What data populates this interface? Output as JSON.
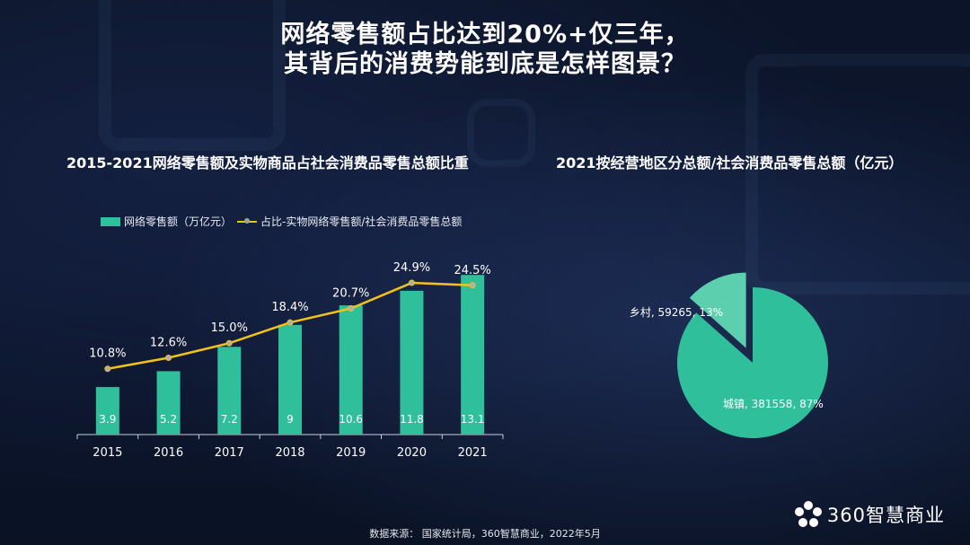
{
  "title": {
    "line1": "网络零售额占比达到20%+仅三年，",
    "line2": "其背后的消费势能到底是怎样图景？"
  },
  "left_chart_title": "2015-2021网络零售额及实物商品占社会消费品零售总额比重",
  "right_chart_title": "2021按经营地区分总额/社会消费品零售总额（亿元）",
  "legend": {
    "bar": "网络零售额（万亿元）",
    "line": "占比-实物网络零售额/社会消费品零售总额"
  },
  "colors": {
    "bar": "#2fbf9b",
    "line": "#f2c21b",
    "pie_main": "#2fbf9b",
    "pie_slice": "#5ccfae"
  },
  "chart_data": [
    {
      "type": "bar",
      "categories": [
        "2015",
        "2016",
        "2017",
        "2018",
        "2019",
        "2020",
        "2021"
      ],
      "series": [
        {
          "name": "网络零售额（万亿元）",
          "type": "bar",
          "values": [
            3.9,
            5.2,
            7.2,
            9,
            10.6,
            11.8,
            13.1
          ],
          "labels": [
            "3.9",
            "5.2",
            "7.2",
            "9",
            "10.6",
            "11.8",
            "13.1"
          ]
        },
        {
          "name": "占比-实物网络零售额/社会消费品零售总额",
          "type": "line",
          "values": [
            10.8,
            12.6,
            15.0,
            18.4,
            20.7,
            24.9,
            24.5
          ],
          "labels": [
            "10.8%",
            "12.6%",
            "15.0%",
            "18.4%",
            "20.7%",
            "24.9%",
            "24.5%"
          ]
        }
      ],
      "ylim": [
        0,
        14
      ],
      "y2lim": [
        0,
        28
      ],
      "grid": false,
      "legend_position": "top-left"
    },
    {
      "type": "pie",
      "slices": [
        {
          "name": "城镇",
          "value": 381558,
          "percent": 87,
          "label": "城镇, 381558, 87%"
        },
        {
          "name": "乡村",
          "value": 59265,
          "percent": 13,
          "label": "乡村, 59265, 13%",
          "exploded": true
        }
      ]
    }
  ],
  "source": "数据来源：  国家统计局，360智慧商业，2022年5月",
  "brand": {
    "name": "360智慧商业",
    "icon": "flower-logo-icon"
  }
}
